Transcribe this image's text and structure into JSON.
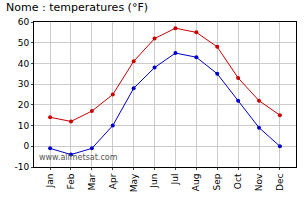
{
  "chart_data": {
    "type": "line",
    "title": "Nome : temperatures (°F)",
    "categories": [
      "Jan",
      "Feb",
      "Mar",
      "Apr",
      "May",
      "Jun",
      "Jul",
      "Aug",
      "Sep",
      "Oct",
      "Nov",
      "Dec"
    ],
    "series": [
      {
        "color": "#cc0000",
        "values": [
          14,
          12,
          17,
          25,
          41,
          52,
          57,
          55,
          48,
          33,
          22,
          15
        ]
      },
      {
        "color": "#0000cc",
        "values": [
          -1,
          -4,
          -1,
          10,
          28,
          38,
          45,
          43,
          35,
          22,
          9,
          0
        ]
      }
    ],
    "ylim": [
      -10,
      60
    ],
    "yticks": [
      -10,
      0,
      10,
      20,
      30,
      40,
      50,
      60
    ],
    "grid": true,
    "marker": "circle",
    "annotations": [
      "www.allmetsat.com"
    ]
  }
}
